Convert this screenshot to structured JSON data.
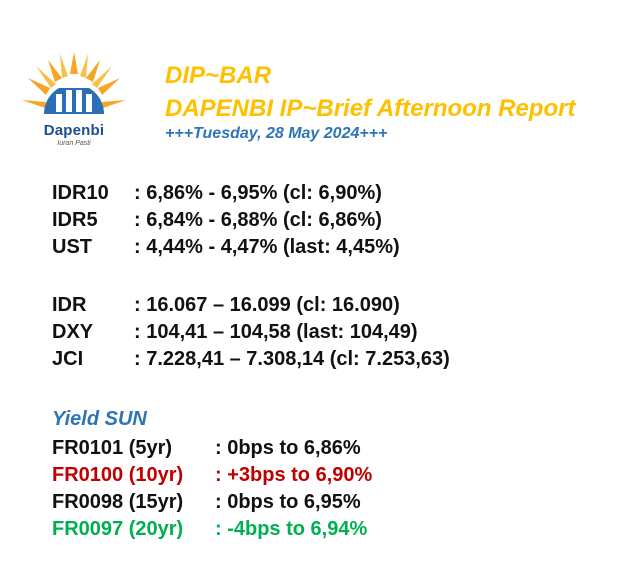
{
  "logo": {
    "brand": "Dapenbi",
    "tagline": "Iuran Pasti",
    "colors": {
      "sun": "#f5a623",
      "building": "#2a6eb5"
    }
  },
  "header": {
    "title": "DIP~BAR",
    "subtitle": "DAPENBI IP~Brief Afternoon Report",
    "date": "+++Tuesday, 28 May 2024+++"
  },
  "yields_group": [
    {
      "label": "IDR10",
      "value": ": 6,86% - 6,95% (cl: 6,90%)"
    },
    {
      "label": "IDR5",
      "value": ": 6,84% - 6,88% (cl: 6,86%)"
    },
    {
      "label": "UST",
      "value": ": 4,44% - 4,47% (last: 4,45%)"
    }
  ],
  "markets_group": [
    {
      "label": "IDR",
      "value": ": 16.067 – 16.099 (cl: 16.090)"
    },
    {
      "label": "DXY",
      "value": ": 104,41 – 104,58 (last: 104,49)"
    },
    {
      "label": "JCI",
      "value": ": 7.228,41 – 7.308,14 (cl: 7.253,63)"
    }
  ],
  "yield_sun": {
    "title": "Yield SUN",
    "rows": [
      {
        "label": "FR0101 (5yr)",
        "value": ": 0bps to 6,86%",
        "color": "#111111"
      },
      {
        "label": "FR0100 (10yr)",
        "value": ": +3bps to 6,90%",
        "color": "#c00000"
      },
      {
        "label": "FR0098 (15yr)",
        "value": ": 0bps to 6,95%",
        "color": "#111111"
      },
      {
        "label": "FR0097 (20yr)",
        "value": ": -4bps to 6,94%",
        "color": "#00b050"
      }
    ]
  }
}
